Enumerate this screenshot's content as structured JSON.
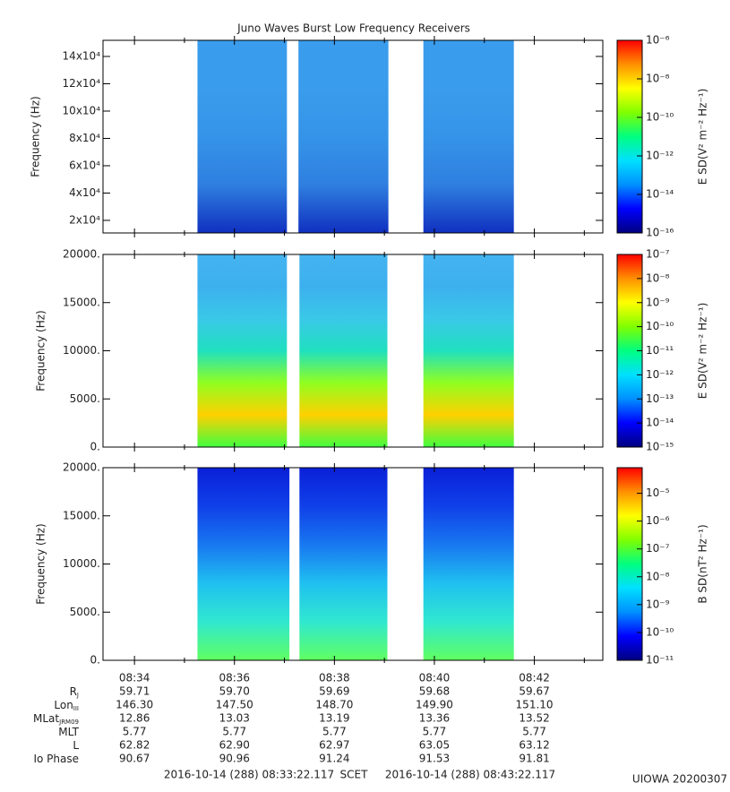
{
  "title": "Juno Waves Burst Low Frequency Receivers",
  "time_axis": {
    "xlim": [
      33.37,
      43.37
    ],
    "xticks": [
      {
        "value": 34,
        "label": "08:34"
      },
      {
        "value": 36,
        "label": "08:36"
      },
      {
        "value": 38,
        "label": "08:38"
      },
      {
        "value": 40,
        "label": "08:40"
      },
      {
        "value": 42,
        "label": "08:42"
      }
    ],
    "minor_xticks": [
      35,
      37,
      39,
      41,
      43
    ]
  },
  "colormap": [
    "#000080",
    "#0000ff",
    "#0090ff",
    "#00e0ff",
    "#00ff80",
    "#80ff00",
    "#ffff00",
    "#ff9000",
    "#ff0000"
  ],
  "chart_data": [
    {
      "type": "spectrogram",
      "ylabel": "Frequency (Hz)",
      "ylim": [
        10800,
        151800
      ],
      "yticks": [
        {
          "value": 20000,
          "label": "2x10⁴"
        },
        {
          "value": 40000,
          "label": "4x10⁴"
        },
        {
          "value": 60000,
          "label": "6x10⁴"
        },
        {
          "value": 80000,
          "label": "8x10⁴"
        },
        {
          "value": 100000,
          "label": "10x10⁴"
        },
        {
          "value": 120000,
          "label": "12x10⁴"
        },
        {
          "value": 140000,
          "label": "14x10⁴"
        }
      ],
      "segments": [
        [
          35.26,
          37.05
        ],
        [
          37.28,
          39.08
        ],
        [
          39.78,
          41.59
        ]
      ],
      "fill_gradient": [
        "#3a9cec",
        "#3a9cec",
        "#3594e8",
        "#2f7fe0",
        "#1030c0"
      ],
      "clabel": "E SD(V² m⁻² Hz⁻¹)",
      "log": true,
      "clim": [
        1e-16,
        1e-06
      ],
      "cticks": [
        {
          "value": 1e-16,
          "label": "10⁻¹⁶"
        },
        {
          "value": 1e-14,
          "label": "10⁻¹⁴"
        },
        {
          "value": 1e-12,
          "label": "10⁻¹²"
        },
        {
          "value": 1e-10,
          "label": "10⁻¹⁰"
        },
        {
          "value": 1e-08,
          "label": "10⁻⁸"
        },
        {
          "value": 1e-06,
          "label": "10⁻⁶"
        }
      ]
    },
    {
      "type": "spectrogram",
      "ylabel": "Frequency (Hz)",
      "ylim": [
        0,
        20000
      ],
      "yticks": [
        {
          "value": 0,
          "label": "0."
        },
        {
          "value": 5000,
          "label": "5000."
        },
        {
          "value": 10000,
          "label": "10000."
        },
        {
          "value": 15000,
          "label": "15000."
        },
        {
          "value": 20000,
          "label": "20000."
        }
      ],
      "segments": [
        [
          35.26,
          37.05
        ],
        [
          37.3,
          39.06
        ],
        [
          39.78,
          41.59
        ]
      ],
      "fill_gradient": [
        "#44b4f0",
        "#3cb0ee",
        "#3ac8e8",
        "#20e0c0",
        "#90ff20",
        "#ffd000",
        "#40ff40"
      ],
      "clabel": "E SD(V² m⁻² Hz⁻¹)",
      "log": true,
      "clim": [
        1e-15,
        1e-07
      ],
      "cticks": [
        {
          "value": 1e-15,
          "label": "10⁻¹⁵"
        },
        {
          "value": 1e-14,
          "label": "10⁻¹⁴"
        },
        {
          "value": 1e-13,
          "label": "10⁻¹³"
        },
        {
          "value": 1e-12,
          "label": "10⁻¹²"
        },
        {
          "value": 1e-11,
          "label": "10⁻¹¹"
        },
        {
          "value": 1e-10,
          "label": "10⁻¹⁰"
        },
        {
          "value": 1e-09,
          "label": "10⁻⁹"
        },
        {
          "value": 1e-08,
          "label": "10⁻⁸"
        },
        {
          "value": 1e-07,
          "label": "10⁻⁷"
        }
      ]
    },
    {
      "type": "spectrogram",
      "ylabel": "Frequency (Hz)",
      "ylim": [
        0,
        20000
      ],
      "yticks": [
        {
          "value": 0,
          "label": "0."
        },
        {
          "value": 5000,
          "label": "5000."
        },
        {
          "value": 10000,
          "label": "10000."
        },
        {
          "value": 15000,
          "label": "15000."
        },
        {
          "value": 20000,
          "label": "20000."
        }
      ],
      "segments": [
        [
          35.26,
          37.1
        ],
        [
          37.3,
          39.06
        ],
        [
          39.78,
          41.59
        ]
      ],
      "fill_gradient": [
        "#0a20d8",
        "#1040e8",
        "#1878f0",
        "#20c0f0",
        "#30e8d0",
        "#60ff60"
      ],
      "clabel": "B SD(nT² Hz⁻¹)",
      "log": true,
      "clim": [
        1e-11,
        8.3e-05
      ],
      "cticks": [
        {
          "value": 1e-11,
          "label": "10⁻¹¹"
        },
        {
          "value": 1e-10,
          "label": "10⁻¹⁰"
        },
        {
          "value": 1e-09,
          "label": "10⁻⁹"
        },
        {
          "value": 1e-08,
          "label": "10⁻⁸"
        },
        {
          "value": 1e-07,
          "label": "10⁻⁷"
        },
        {
          "value": 1e-06,
          "label": "10⁻⁶"
        },
        {
          "value": 1e-05,
          "label": "10⁻⁵"
        }
      ]
    }
  ],
  "ephemeris": {
    "rows": [
      {
        "label": "R",
        "sub": "J",
        "values": [
          "59.71",
          "59.70",
          "59.69",
          "59.68",
          "59.67"
        ]
      },
      {
        "label": "Lon",
        "sub": "III",
        "values": [
          "146.30",
          "147.50",
          "148.70",
          "149.90",
          "151.10"
        ]
      },
      {
        "label": "MLat",
        "sub": "JRM09",
        "values": [
          "12.86",
          "13.03",
          "13.19",
          "13.36",
          "13.52"
        ]
      },
      {
        "label": "MLT",
        "values": [
          "5.77",
          "5.77",
          "5.77",
          "5.77",
          "5.77"
        ]
      },
      {
        "label": "L",
        "values": [
          "62.82",
          "62.90",
          "62.97",
          "63.05",
          "63.12"
        ]
      },
      {
        "label": "Io Phase",
        "values": [
          "90.67",
          "90.96",
          "91.24",
          "91.53",
          "91.81"
        ]
      }
    ]
  },
  "footer": {
    "start": "2016-10-14 (288) 08:33:22.117",
    "scet": "SCET",
    "end": "2016-10-14 (288) 08:43:22.117",
    "stamp": "UIOWA 20200307"
  }
}
